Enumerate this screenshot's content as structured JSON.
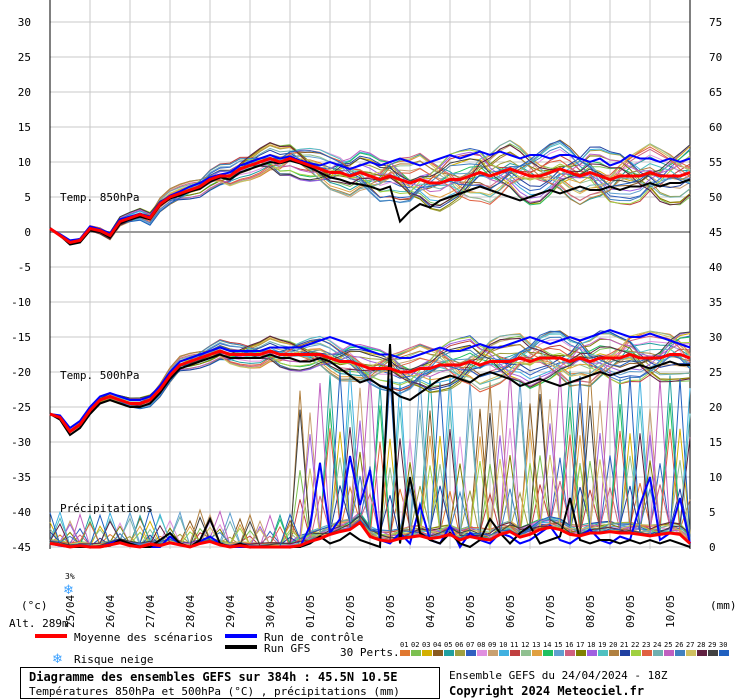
{
  "footer": {
    "title": "Diagramme des ensembles GEFS sur 384h : 45.5N 10.5E",
    "subtitle": "Températures 850hPa et 500hPa (°C) , précipitations (mm)",
    "ensemble_run": "Ensemble GEFS du 24/04/2024 - 18Z",
    "copyright": "Copyright 2024 Meteociel.fr"
  },
  "labels": {
    "t850": "Temp. 850hPa",
    "t500": "Temp. 500hPa",
    "precip": "Précipitations",
    "left_unit": "(°c)",
    "right_unit": "(mm)",
    "altitude": "Alt. 289m",
    "snow_pct": "3%"
  },
  "legend": {
    "mean": "Moyenne des scénarios",
    "control": "Run de contrôle",
    "gfs": "Run GFS",
    "snow": "Risque neige",
    "perts_label": "30 Perts.",
    "perts": [
      "01",
      "02",
      "03",
      "04",
      "05",
      "06",
      "07",
      "08",
      "09",
      "10",
      "11",
      "12",
      "13",
      "14",
      "15",
      "16",
      "17",
      "18",
      "19",
      "20",
      "21",
      "22",
      "23",
      "24",
      "25",
      "26",
      "27",
      "28",
      "29",
      "30"
    ]
  },
  "colors": {
    "mean": "#ff0000",
    "control": "#0000ff",
    "gfs": "#000000",
    "zero_line": "#9a9a9a",
    "grid": "#c8c8c8",
    "perts": [
      "#e07830",
      "#7cc050",
      "#d4b000",
      "#8a5a20",
      "#20a0a0",
      "#a0a040",
      "#3060c0",
      "#e090e0",
      "#c8a070",
      "#40b0e0",
      "#c04040",
      "#90c090",
      "#e0a040",
      "#20c060",
      "#60a0d0",
      "#d06080",
      "#808000",
      "#a060e0",
      "#50c0c0",
      "#b08040",
      "#2040a0",
      "#a0d040",
      "#e06040",
      "#70b0b0",
      "#c060c0",
      "#4080c0",
      "#d0c060",
      "#602040",
      "#404040",
      "#2060c0"
    ]
  },
  "chart_data": {
    "type": "line",
    "title": "Diagramme des ensembles GEFS sur 384h : 45.5N 10.5E",
    "left_axis": {
      "label": "(°c)",
      "range": [
        -45,
        30
      ],
      "ticks": [
        30,
        25,
        20,
        15,
        10,
        5,
        0,
        -5,
        -10,
        -15,
        -20,
        -25,
        -30,
        -35,
        -40,
        -45
      ]
    },
    "right_axis": {
      "label": "(mm)",
      "range": [
        0,
        75
      ],
      "ticks": [
        75,
        70,
        65,
        60,
        55,
        50,
        45,
        40,
        35,
        30,
        25,
        20,
        15,
        10,
        5,
        0
      ]
    },
    "x_dates": [
      "25/04",
      "26/04",
      "27/04",
      "28/04",
      "29/04",
      "30/04",
      "01/05",
      "02/05",
      "03/05",
      "04/05",
      "05/05",
      "06/05",
      "07/05",
      "08/05",
      "09/05",
      "10/05"
    ],
    "grid": true,
    "time_step_hours": 6,
    "hours": [
      0,
      6,
      12,
      18,
      24,
      30,
      36,
      42,
      48,
      54,
      60,
      66,
      72,
      78,
      84,
      90,
      96,
      102,
      108,
      114,
      120,
      126,
      132,
      138,
      144,
      150,
      156,
      162,
      168,
      174,
      180,
      186,
      192,
      198,
      204,
      210,
      216,
      222,
      228,
      234,
      240,
      246,
      252,
      258,
      264,
      270,
      276,
      282,
      288,
      294,
      300,
      306,
      312,
      318,
      324,
      330,
      336,
      342,
      348,
      354,
      360,
      366,
      372,
      378,
      384
    ],
    "series": [
      {
        "name": "T850 Moyenne des scénarios",
        "unit": "°C",
        "values": [
          0.5,
          -0.5,
          -1.5,
          -1.2,
          0.5,
          0.2,
          -0.5,
          1.5,
          2.0,
          2.5,
          2.0,
          4.0,
          5.0,
          5.5,
          6.0,
          6.5,
          7.5,
          8.0,
          8.0,
          9.0,
          9.5,
          10.0,
          10.5,
          10.0,
          10.5,
          10.0,
          9.5,
          9.0,
          8.5,
          8.5,
          8.0,
          8.5,
          8.0,
          7.5,
          8.0,
          7.5,
          7.0,
          7.5,
          7.0,
          7.0,
          7.5,
          7.5,
          8.0,
          8.5,
          8.0,
          8.5,
          9.0,
          8.5,
          8.0,
          8.0,
          8.5,
          9.0,
          8.5,
          8.0,
          8.5,
          8.0,
          7.5,
          8.0,
          8.0,
          8.0,
          8.5,
          8.0,
          8.0,
          8.0,
          8.5
        ]
      },
      {
        "name": "T850 Run de contrôle",
        "unit": "°C",
        "values": [
          0.5,
          -0.3,
          -1.2,
          -1.0,
          0.8,
          0.4,
          -0.2,
          1.8,
          2.2,
          2.6,
          2.2,
          4.2,
          5.2,
          5.8,
          6.5,
          7.0,
          7.8,
          8.2,
          8.5,
          9.5,
          10.0,
          10.5,
          11.0,
          10.5,
          10.8,
          10.2,
          9.8,
          9.5,
          10.0,
          9.5,
          9.0,
          9.5,
          10.0,
          9.5,
          10.0,
          10.5,
          10.0,
          9.5,
          10.0,
          10.5,
          11.0,
          10.5,
          11.0,
          11.5,
          11.0,
          11.5,
          11.0,
          10.5,
          11.0,
          11.0,
          10.5,
          11.0,
          11.0,
          10.5,
          10.0,
          10.5,
          9.5,
          10.0,
          11.0,
          10.5,
          10.5,
          10.0,
          10.5,
          10.0,
          10.5
        ]
      },
      {
        "name": "T850 Run GFS",
        "unit": "°C",
        "values": [
          0.5,
          -0.5,
          -1.8,
          -1.5,
          0.2,
          0.0,
          -0.8,
          1.2,
          1.8,
          2.2,
          1.8,
          3.8,
          4.8,
          5.2,
          5.8,
          6.2,
          7.2,
          7.8,
          7.5,
          8.5,
          9.0,
          9.5,
          10.0,
          9.8,
          10.2,
          9.8,
          9.2,
          8.5,
          7.8,
          7.5,
          7.0,
          6.8,
          6.5,
          6.0,
          6.5,
          1.5,
          3.0,
          4.0,
          3.5,
          4.5,
          5.0,
          5.5,
          6.0,
          6.5,
          6.0,
          5.5,
          5.0,
          4.5,
          5.0,
          5.5,
          6.0,
          5.5,
          6.0,
          6.5,
          6.0,
          6.0,
          6.5,
          6.0,
          6.5,
          6.5,
          7.0,
          6.5,
          7.0,
          7.0,
          7.5
        ]
      },
      {
        "name": "T500 Moyenne des scénarios",
        "unit": "°C",
        "values": [
          -26.0,
          -26.5,
          -28.5,
          -27.5,
          -25.5,
          -24.0,
          -23.5,
          -24.0,
          -24.5,
          -24.5,
          -24.0,
          -22.5,
          -20.5,
          -19.0,
          -18.5,
          -18.0,
          -17.5,
          -17.0,
          -17.5,
          -17.5,
          -17.5,
          -17.5,
          -17.0,
          -17.5,
          -17.5,
          -17.5,
          -17.5,
          -17.5,
          -18.0,
          -18.5,
          -18.5,
          -19.0,
          -19.5,
          -19.5,
          -19.5,
          -20.0,
          -20.0,
          -19.5,
          -19.5,
          -19.0,
          -19.0,
          -19.0,
          -18.5,
          -19.0,
          -18.5,
          -18.5,
          -18.5,
          -18.0,
          -18.5,
          -18.0,
          -18.0,
          -18.0,
          -18.5,
          -18.0,
          -18.5,
          -18.0,
          -18.0,
          -18.0,
          -17.5,
          -18.0,
          -18.0,
          -18.0,
          -17.5,
          -17.5,
          -18.0
        ]
      },
      {
        "name": "T500 Run de contrôle",
        "unit": "°C",
        "values": [
          -26.0,
          -26.2,
          -28.0,
          -27.0,
          -25.0,
          -23.5,
          -23.0,
          -23.5,
          -24.0,
          -24.0,
          -23.5,
          -22.0,
          -20.0,
          -18.5,
          -18.0,
          -17.5,
          -17.0,
          -16.5,
          -17.0,
          -17.0,
          -17.0,
          -17.0,
          -16.5,
          -16.5,
          -16.5,
          -16.5,
          -16.0,
          -15.5,
          -15.0,
          -15.5,
          -16.0,
          -16.5,
          -17.0,
          -17.5,
          -17.5,
          -18.0,
          -18.0,
          -17.5,
          -17.0,
          -16.5,
          -17.0,
          -17.0,
          -16.5,
          -16.0,
          -16.5,
          -16.5,
          -16.0,
          -15.5,
          -15.0,
          -15.5,
          -16.0,
          -15.5,
          -15.0,
          -15.5,
          -15.0,
          -14.5,
          -14.0,
          -14.5,
          -15.0,
          -15.0,
          -14.5,
          -15.0,
          -15.5,
          -16.0,
          -16.5
        ]
      },
      {
        "name": "T500 Run GFS",
        "unit": "°C",
        "values": [
          -26.0,
          -26.8,
          -29.0,
          -28.0,
          -26.0,
          -24.5,
          -24.0,
          -24.5,
          -25.0,
          -25.0,
          -24.5,
          -23.0,
          -21.0,
          -19.5,
          -19.0,
          -18.5,
          -18.0,
          -17.5,
          -18.0,
          -18.0,
          -18.0,
          -18.0,
          -17.5,
          -18.0,
          -18.0,
          -18.5,
          -18.5,
          -18.0,
          -18.5,
          -19.5,
          -20.5,
          -21.5,
          -21.0,
          -22.0,
          -22.5,
          -23.5,
          -24.0,
          -23.0,
          -22.0,
          -21.0,
          -20.5,
          -21.0,
          -21.5,
          -20.5,
          -20.0,
          -20.5,
          -21.0,
          -22.0,
          -21.5,
          -21.0,
          -21.5,
          -22.0,
          -21.5,
          -21.0,
          -20.5,
          -20.0,
          -20.5,
          -20.0,
          -19.5,
          -19.0,
          -19.5,
          -19.0,
          -18.5,
          -19.0,
          -19.0
        ]
      },
      {
        "name": "Précipitations Moyenne des scénarios",
        "unit": "mm",
        "values": [
          0.5,
          0.3,
          0.0,
          0.2,
          0.0,
          0.0,
          0.3,
          0.6,
          0.2,
          0.0,
          0.4,
          0.2,
          0.6,
          0.3,
          0.0,
          0.5,
          0.8,
          0.3,
          0.0,
          0.2,
          0.0,
          0.0,
          0.0,
          0.0,
          0.0,
          0.2,
          0.8,
          1.2,
          1.8,
          2.2,
          2.5,
          3.5,
          1.5,
          1.0,
          0.8,
          1.2,
          1.4,
          1.6,
          1.2,
          1.4,
          1.8,
          1.0,
          1.5,
          1.2,
          1.0,
          1.8,
          2.2,
          1.4,
          1.8,
          2.5,
          2.8,
          2.5,
          1.8,
          1.6,
          2.0,
          2.0,
          2.2,
          2.0,
          2.0,
          1.8,
          1.6,
          1.8,
          2.0,
          1.8,
          0.5
        ]
      },
      {
        "name": "Précipitations Run de contrôle",
        "unit": "mm",
        "values": [
          0.5,
          0.2,
          0.0,
          0.0,
          0.0,
          0.0,
          0.5,
          1.0,
          0.2,
          0.0,
          0.0,
          0.0,
          1.5,
          0.5,
          0.0,
          0.8,
          1.5,
          0.5,
          0.0,
          0.0,
          0.0,
          0.0,
          0.0,
          0.0,
          0.0,
          0.0,
          3.0,
          12.0,
          2.0,
          4.0,
          13.0,
          6.0,
          11.0,
          1.0,
          0.5,
          2.0,
          0.5,
          6.0,
          1.0,
          0.5,
          3.0,
          0.0,
          2.0,
          1.0,
          0.5,
          2.0,
          1.5,
          0.5,
          1.0,
          2.0,
          3.0,
          1.0,
          0.5,
          1.5,
          2.5,
          1.0,
          0.5,
          1.5,
          1.0,
          6.0,
          10.0,
          1.0,
          2.0,
          7.0,
          0.5
        ]
      },
      {
        "name": "Précipitations Run GFS",
        "unit": "mm",
        "values": [
          0.5,
          0.3,
          0.0,
          0.0,
          0.0,
          0.0,
          0.2,
          1.0,
          0.5,
          0.0,
          0.0,
          1.0,
          2.0,
          0.5,
          0.0,
          1.0,
          4.0,
          0.5,
          0.0,
          0.5,
          0.0,
          0.0,
          0.0,
          0.0,
          0.0,
          0.0,
          0.5,
          1.5,
          0.5,
          1.0,
          2.0,
          1.0,
          0.5,
          0.0,
          29.0,
          0.5,
          10.0,
          2.0,
          1.0,
          0.5,
          2.0,
          0.5,
          0.0,
          1.0,
          4.0,
          2.0,
          0.5,
          2.0,
          3.0,
          0.5,
          1.0,
          1.5,
          7.0,
          1.0,
          0.5,
          1.0,
          1.0,
          0.5,
          1.0,
          0.5,
          1.0,
          0.5,
          1.0,
          0.5,
          0.0
        ]
      }
    ]
  }
}
